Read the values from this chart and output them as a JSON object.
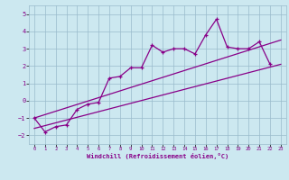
{
  "xlabel": "Windchill (Refroidissement éolien,°C)",
  "xlim": [
    -0.5,
    23.5
  ],
  "ylim": [
    -2.5,
    5.5
  ],
  "yticks": [
    -2,
    -1,
    0,
    1,
    2,
    3,
    4,
    5
  ],
  "xticks": [
    0,
    1,
    2,
    3,
    4,
    5,
    6,
    7,
    8,
    9,
    10,
    11,
    12,
    13,
    14,
    15,
    16,
    17,
    18,
    19,
    20,
    21,
    22,
    23
  ],
  "background_color": "#cce8f0",
  "line_color": "#880088",
  "data_line": {
    "x": [
      0,
      1,
      2,
      3,
      4,
      5,
      6,
      7,
      8,
      9,
      10,
      11,
      12,
      13,
      14,
      15,
      16,
      17,
      18,
      19,
      20,
      21,
      22
    ],
    "y": [
      -1.0,
      -1.8,
      -1.5,
      -1.4,
      -0.5,
      -0.2,
      -0.1,
      1.3,
      1.4,
      1.9,
      1.9,
      3.2,
      2.8,
      3.0,
      3.0,
      2.7,
      3.8,
      4.7,
      3.1,
      3.0,
      3.0,
      3.4,
      2.1
    ]
  },
  "trend_line1": {
    "x": [
      0,
      23
    ],
    "y": [
      -1.6,
      2.1
    ]
  },
  "trend_line2": {
    "x": [
      0,
      23
    ],
    "y": [
      -1.0,
      3.5
    ]
  },
  "grid_color": "#99bbcc",
  "marker": "+"
}
